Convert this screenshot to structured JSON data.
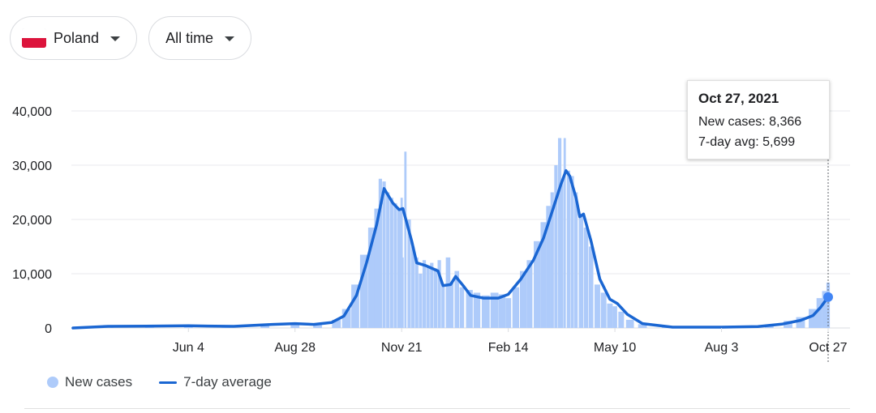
{
  "filters": {
    "country": {
      "label": "Poland",
      "flag_icon": "poland-flag-icon",
      "flag_colors": [
        "#ffffff",
        "#dc143c"
      ]
    },
    "period": {
      "label": "All time"
    }
  },
  "tooltip": {
    "date": "Oct 27, 2021",
    "new_cases": "New cases: 8,366",
    "avg": "7-day avg: 5,699"
  },
  "legend": {
    "bars_label": "New cases",
    "line_label": "7-day average"
  },
  "colors": {
    "bars": "#aecbfa",
    "line": "#1a66d2",
    "grid": "#e8eaed",
    "crosshair": "#5f6368"
  },
  "chart_data": {
    "type": "bar",
    "title": "",
    "xlabel": "",
    "ylabel": "",
    "ylim": [
      0,
      40000
    ],
    "y_ticks": [
      0,
      10000,
      20000,
      30000,
      40000
    ],
    "y_tick_labels": [
      "0",
      "10,000",
      "20,000",
      "30,000",
      "40,000"
    ],
    "x_range": [
      "2020-03-04",
      "2021-10-27"
    ],
    "x_ticks": [
      {
        "date": "2020-06-04",
        "label": "Jun 4"
      },
      {
        "date": "2020-08-28",
        "label": "Aug 28"
      },
      {
        "date": "2020-11-21",
        "label": "Nov 21"
      },
      {
        "date": "2021-02-14",
        "label": "Feb 14"
      },
      {
        "date": "2021-05-10",
        "label": "May 10"
      },
      {
        "date": "2021-08-03",
        "label": "Aug 3"
      },
      {
        "date": "2021-10-27",
        "label": "Oct 27"
      }
    ],
    "grid": true,
    "legend_position": "bottom-left",
    "highlight": {
      "date": "2021-10-27",
      "new_cases": 8366,
      "avg": 5699
    },
    "series": [
      {
        "name": "New cases",
        "type": "bar",
        "points": [
          [
            "2020-04-04",
            300
          ],
          [
            "2020-05-04",
            350
          ],
          [
            "2020-06-04",
            400
          ],
          [
            "2020-07-04",
            300
          ],
          [
            "2020-08-04",
            650
          ],
          [
            "2020-08-28",
            800
          ],
          [
            "2020-09-15",
            600
          ],
          [
            "2020-09-30",
            1500
          ],
          [
            "2020-10-08",
            3500
          ],
          [
            "2020-10-15",
            8000
          ],
          [
            "2020-10-22",
            13500
          ],
          [
            "2020-10-28",
            18500
          ],
          [
            "2020-11-01",
            22000
          ],
          [
            "2020-11-04",
            27500
          ],
          [
            "2020-11-07",
            27000
          ],
          [
            "2020-11-10",
            25000
          ],
          [
            "2020-11-13",
            24000
          ],
          [
            "2020-11-16",
            23000
          ],
          [
            "2020-11-19",
            22000
          ],
          [
            "2020-11-21",
            24000
          ],
          [
            "2020-11-22",
            13000
          ],
          [
            "2020-11-24",
            32500
          ],
          [
            "2020-11-27",
            20000
          ],
          [
            "2020-11-30",
            15000
          ],
          [
            "2020-12-03",
            13000
          ],
          [
            "2020-12-06",
            10000
          ],
          [
            "2020-12-09",
            12500
          ],
          [
            "2020-12-12",
            11500
          ],
          [
            "2020-12-15",
            12000
          ],
          [
            "2020-12-18",
            11000
          ],
          [
            "2020-12-21",
            12500
          ],
          [
            "2020-12-24",
            8000
          ],
          [
            "2020-12-28",
            13000
          ],
          [
            "2020-12-31",
            8500
          ],
          [
            "2021-01-04",
            10500
          ],
          [
            "2021-01-08",
            7500
          ],
          [
            "2021-01-14",
            7000
          ],
          [
            "2021-01-20",
            6500
          ],
          [
            "2021-01-27",
            6000
          ],
          [
            "2021-02-03",
            6500
          ],
          [
            "2021-02-09",
            6200
          ],
          [
            "2021-02-14",
            5500
          ],
          [
            "2021-02-20",
            7500
          ],
          [
            "2021-02-26",
            10500
          ],
          [
            "2021-03-03",
            12500
          ],
          [
            "2021-03-09",
            16000
          ],
          [
            "2021-03-14",
            19500
          ],
          [
            "2021-03-18",
            22500
          ],
          [
            "2021-03-21",
            25000
          ],
          [
            "2021-03-24",
            30000
          ],
          [
            "2021-03-27",
            35000
          ],
          [
            "2021-03-29",
            27000
          ],
          [
            "2021-03-31",
            35000
          ],
          [
            "2021-04-03",
            29000
          ],
          [
            "2021-04-06",
            28000
          ],
          [
            "2021-04-09",
            25000
          ],
          [
            "2021-04-13",
            21000
          ],
          [
            "2021-04-17",
            18500
          ],
          [
            "2021-04-21",
            15000
          ],
          [
            "2021-04-26",
            8000
          ],
          [
            "2021-05-01",
            6500
          ],
          [
            "2021-05-06",
            4500
          ],
          [
            "2021-05-10",
            4000
          ],
          [
            "2021-05-15",
            3000
          ],
          [
            "2021-05-22",
            1500
          ],
          [
            "2021-06-01",
            700
          ],
          [
            "2021-06-20",
            300
          ],
          [
            "2021-07-15",
            150
          ],
          [
            "2021-08-03",
            200
          ],
          [
            "2021-08-25",
            300
          ],
          [
            "2021-09-10",
            600
          ],
          [
            "2021-09-25",
            1300
          ],
          [
            "2021-10-05",
            2000
          ],
          [
            "2021-10-15",
            3500
          ],
          [
            "2021-10-20",
            5500
          ],
          [
            "2021-10-24",
            6800
          ],
          [
            "2021-10-27",
            8366
          ]
        ]
      },
      {
        "name": "7-day average",
        "type": "line",
        "points": [
          [
            "2020-03-04",
            0
          ],
          [
            "2020-04-01",
            300
          ],
          [
            "2020-05-01",
            350
          ],
          [
            "2020-06-04",
            400
          ],
          [
            "2020-07-10",
            300
          ],
          [
            "2020-08-10",
            650
          ],
          [
            "2020-08-28",
            800
          ],
          [
            "2020-09-12",
            650
          ],
          [
            "2020-09-26",
            1000
          ],
          [
            "2020-10-06",
            2200
          ],
          [
            "2020-10-16",
            6000
          ],
          [
            "2020-10-24",
            12000
          ],
          [
            "2020-11-01",
            19000
          ],
          [
            "2020-11-07",
            25700
          ],
          [
            "2020-11-14",
            23000
          ],
          [
            "2020-11-19",
            21800
          ],
          [
            "2020-11-22",
            22000
          ],
          [
            "2020-11-29",
            16000
          ],
          [
            "2020-12-03",
            12000
          ],
          [
            "2020-12-10",
            11500
          ],
          [
            "2020-12-20",
            10500
          ],
          [
            "2020-12-24",
            7800
          ],
          [
            "2020-12-30",
            8000
          ],
          [
            "2021-01-03",
            9500
          ],
          [
            "2021-01-09",
            7800
          ],
          [
            "2021-01-15",
            6000
          ],
          [
            "2021-01-25",
            5500
          ],
          [
            "2021-02-06",
            5500
          ],
          [
            "2021-02-14",
            6200
          ],
          [
            "2021-02-24",
            9000
          ],
          [
            "2021-03-06",
            12500
          ],
          [
            "2021-03-14",
            16500
          ],
          [
            "2021-03-21",
            21500
          ],
          [
            "2021-03-28",
            26500
          ],
          [
            "2021-04-01",
            29000
          ],
          [
            "2021-04-04",
            28000
          ],
          [
            "2021-04-09",
            24000
          ],
          [
            "2021-04-12",
            20500
          ],
          [
            "2021-04-15",
            21000
          ],
          [
            "2021-04-21",
            16000
          ],
          [
            "2021-04-28",
            9000
          ],
          [
            "2021-05-06",
            5300
          ],
          [
            "2021-05-12",
            4500
          ],
          [
            "2021-05-20",
            2500
          ],
          [
            "2021-06-01",
            800
          ],
          [
            "2021-06-25",
            150
          ],
          [
            "2021-08-03",
            150
          ],
          [
            "2021-09-01",
            250
          ],
          [
            "2021-09-20",
            700
          ],
          [
            "2021-10-05",
            1400
          ],
          [
            "2021-10-15",
            2300
          ],
          [
            "2021-10-21",
            3800
          ],
          [
            "2021-10-27",
            5699
          ]
        ]
      }
    ]
  }
}
